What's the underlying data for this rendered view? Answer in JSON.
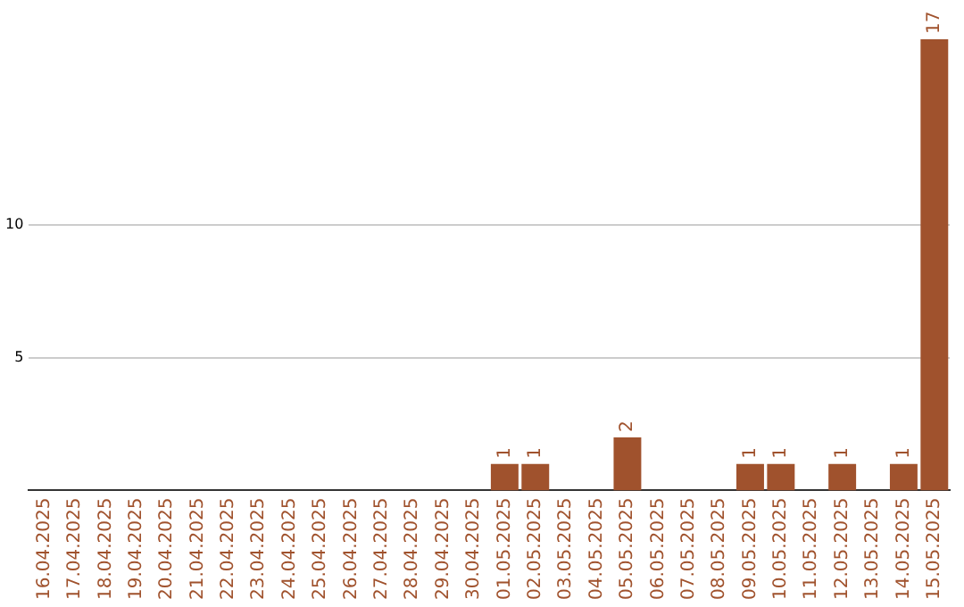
{
  "chart_data": {
    "type": "bar",
    "categories": [
      "16.04.2025",
      "17.04.2025",
      "18.04.2025",
      "19.04.2025",
      "20.04.2025",
      "21.04.2025",
      "22.04.2025",
      "23.04.2025",
      "24.04.2025",
      "25.04.2025",
      "26.04.2025",
      "27.04.2025",
      "28.04.2025",
      "29.04.2025",
      "30.04.2025",
      "01.05.2025",
      "02.05.2025",
      "03.05.2025",
      "04.05.2025",
      "05.05.2025",
      "06.05.2025",
      "07.05.2025",
      "08.05.2025",
      "09.05.2025",
      "10.05.2025",
      "11.05.2025",
      "12.05.2025",
      "13.05.2025",
      "14.05.2025",
      "15.05.2025"
    ],
    "values": [
      0,
      0,
      0,
      0,
      0,
      0,
      0,
      0,
      0,
      0,
      0,
      0,
      0,
      0,
      0,
      1,
      1,
      0,
      0,
      2,
      0,
      0,
      0,
      1,
      1,
      0,
      1,
      0,
      1,
      17
    ],
    "value_labels": [
      null,
      null,
      null,
      null,
      null,
      null,
      null,
      null,
      null,
      null,
      null,
      null,
      null,
      null,
      null,
      "1",
      "1",
      null,
      null,
      "2",
      null,
      null,
      null,
      "1",
      "1",
      null,
      "1",
      null,
      "1",
      "17"
    ],
    "color": "#a0522d",
    "ylim": [
      0,
      17
    ],
    "yticks": [
      5,
      10
    ],
    "grid": "y",
    "legend": false
  }
}
